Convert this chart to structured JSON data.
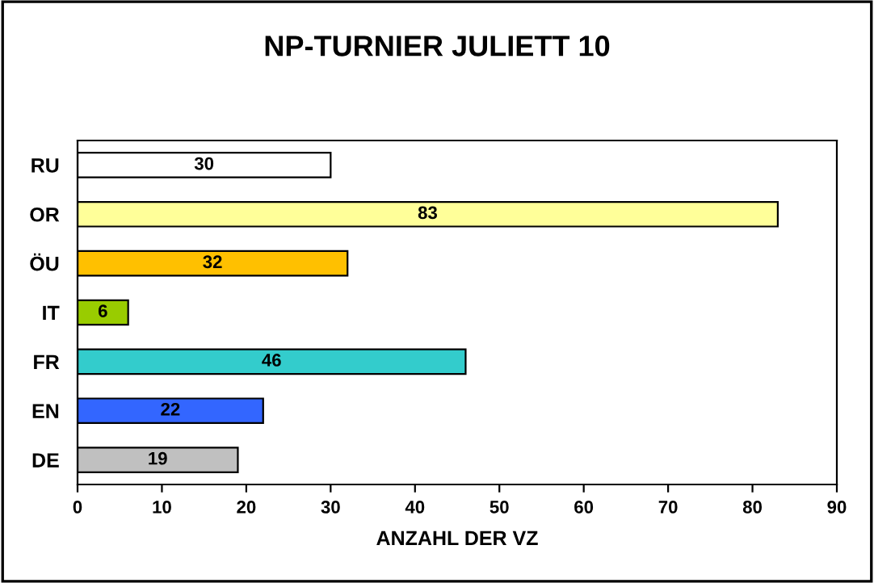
{
  "chart_data": {
    "type": "bar",
    "orientation": "horizontal",
    "title": "NP-TURNIER JULIETT 10",
    "xlabel": "ANZAHL DER VZ",
    "categories": [
      "RU",
      "OR",
      "ÖU",
      "IT",
      "FR",
      "EN",
      "DE"
    ],
    "values": [
      30,
      83,
      32,
      6,
      46,
      22,
      19
    ],
    "colors": [
      "#ffffff",
      "#ffff99",
      "#ffc000",
      "#99cc00",
      "#33cccc",
      "#3366ff",
      "#c0c0c0"
    ],
    "xlim": [
      0,
      90
    ],
    "xticks": [
      0,
      10,
      20,
      30,
      40,
      50,
      60,
      70,
      80,
      90
    ],
    "data_labels": true,
    "grid": false,
    "legend": false
  }
}
